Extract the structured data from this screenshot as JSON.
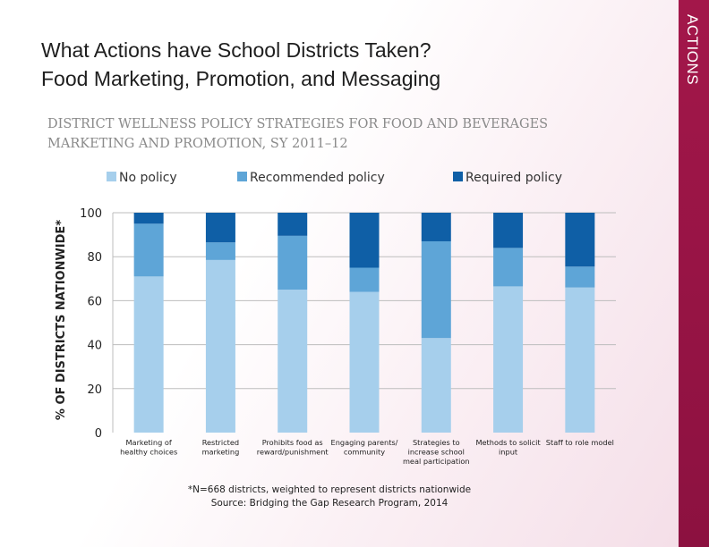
{
  "side_label": "ACTIONS",
  "title": {
    "line1": "What Actions have School Districts Taken?",
    "line2": "Food Marketing, Promotion, and Messaging"
  },
  "colors": {
    "no_policy": "#a6cfec",
    "recommended_policy": "#5ea5d7",
    "required_policy": "#0f5fa6",
    "side_band": "#a3174a"
  },
  "chart_data": {
    "type": "bar",
    "stacked": true,
    "title": [
      "DISTRICT WELLNESS POLICY STRATEGIES FOR FOOD AND BEVERAGES",
      "MARKETING AND PROMOTION, SY 2011–12"
    ],
    "ylabel": "% OF DISTRICTS NATIONWIDE*",
    "ylim": [
      0,
      100
    ],
    "yticks": [
      0,
      20,
      40,
      60,
      80,
      100
    ],
    "grid": true,
    "legend_position": "top",
    "categories": [
      [
        "Marketing of",
        "healthy choices"
      ],
      [
        "Restricted",
        "marketing"
      ],
      [
        "Prohibits food as",
        "reward/punishment"
      ],
      [
        "Engaging parents/",
        "community"
      ],
      [
        "Strategies to",
        "increase school",
        "meal participation"
      ],
      [
        "Methods to solicit",
        "input"
      ],
      [
        "Staff to role model"
      ]
    ],
    "series": [
      {
        "name": "No policy",
        "values": [
          71,
          78.5,
          65,
          64,
          43,
          66.5,
          66
        ]
      },
      {
        "name": "Recommended policy",
        "values": [
          24,
          8,
          24.5,
          11,
          44,
          17.5,
          9.5
        ]
      },
      {
        "name": "Required policy",
        "values": [
          5,
          13.5,
          10.5,
          25,
          13,
          16,
          24.5
        ]
      }
    ],
    "notes": [
      "*N=668 districts, weighted to represent districts nationwide",
      "Source: Bridging the Gap Research Program, 2014"
    ]
  }
}
